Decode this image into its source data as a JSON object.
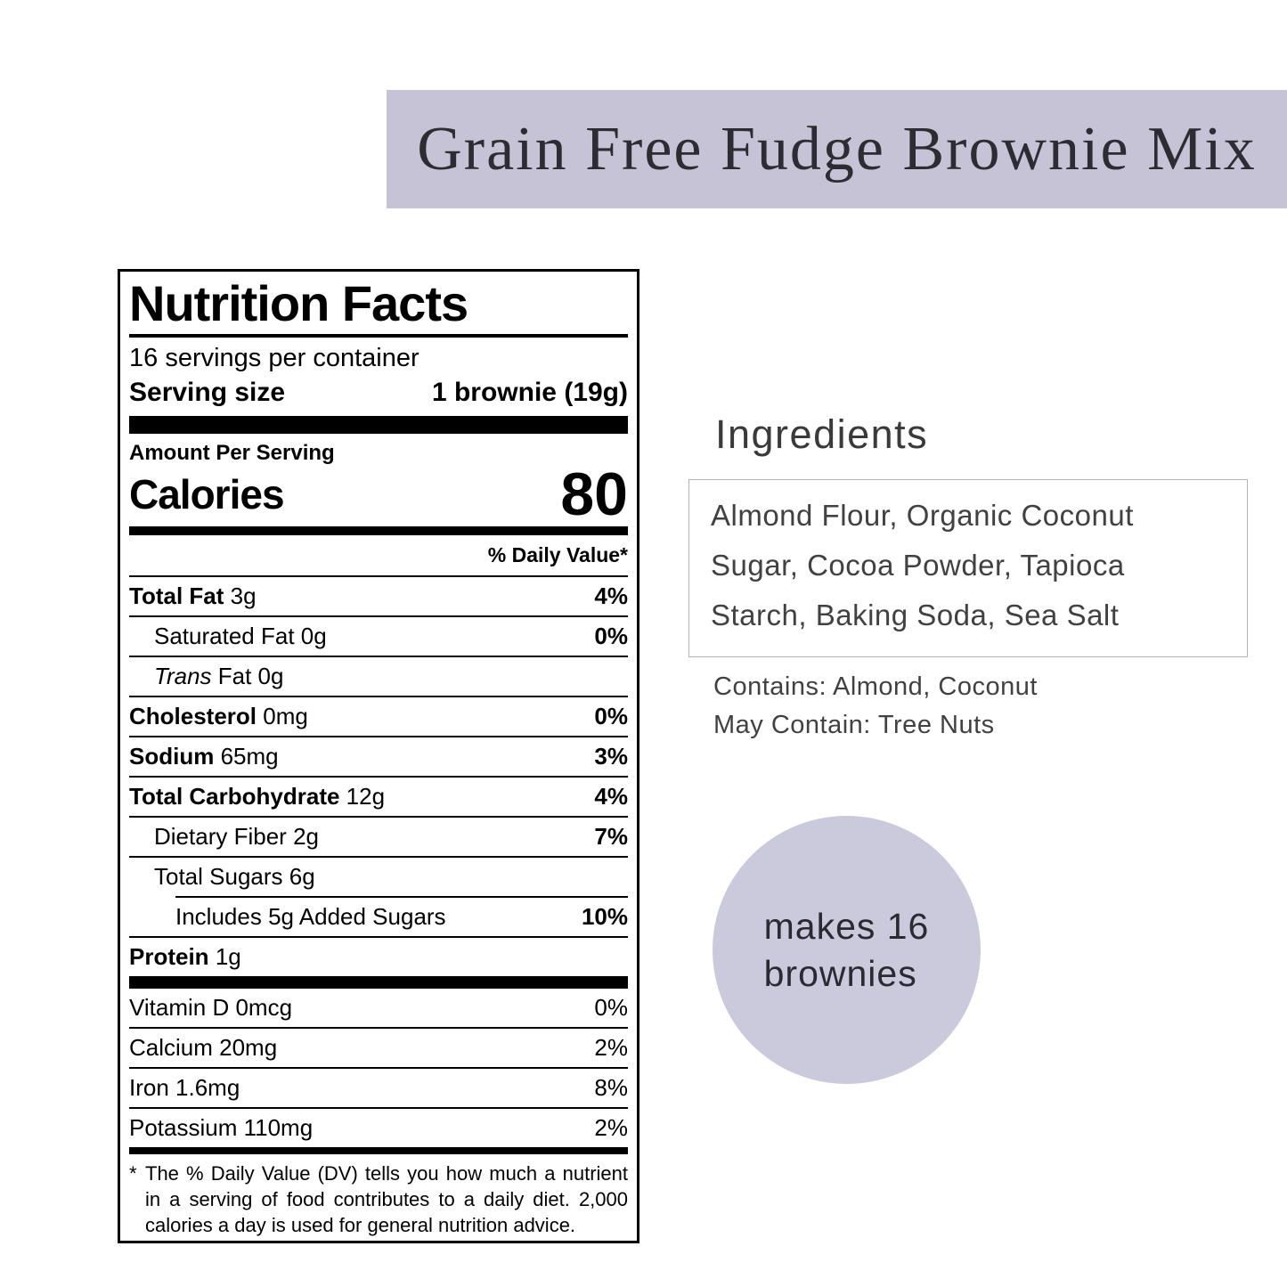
{
  "header": {
    "title": "Grain Free Fudge Brownie Mix"
  },
  "colors": {
    "banner_bg": "#c6c3d6",
    "badge_bg": "#cbc9dc",
    "title_text": "#2d2c33",
    "label_border": "#000000",
    "ingredients_box_border": "#b5b5b5"
  },
  "nutrition": {
    "title": "Nutrition Facts",
    "servings_per_container": "16 servings per container",
    "serving_size_label": "Serving size",
    "serving_size_value": "1 brownie (19g)",
    "amount_per_serving": "Amount Per Serving",
    "calories_label": "Calories",
    "calories_value": "80",
    "daily_value_header": "% Daily Value*",
    "rows": [
      {
        "name": "Total Fat",
        "amount": "3g",
        "dv": "4%"
      },
      {
        "name": "Saturated Fat",
        "amount": "0g",
        "dv": "0%"
      },
      {
        "name": "Trans",
        "amount": "Fat 0g",
        "dv": ""
      },
      {
        "name": "Cholesterol",
        "amount": "0mg",
        "dv": "0%"
      },
      {
        "name": "Sodium",
        "amount": "65mg",
        "dv": "3%"
      },
      {
        "name": "Total Carbohydrate",
        "amount": "12g",
        "dv": "4%"
      },
      {
        "name": "Dietary Fiber",
        "amount": "2g",
        "dv": "7%"
      },
      {
        "name": "Total Sugars",
        "amount": "6g",
        "dv": ""
      },
      {
        "name": "Includes 5g Added Sugars",
        "amount": "",
        "dv": "10%"
      },
      {
        "name": "Protein",
        "amount": "1g",
        "dv": ""
      }
    ],
    "micronutrients": [
      {
        "name": "Vitamin D 0mcg",
        "dv": "0%"
      },
      {
        "name": "Calcium 20mg",
        "dv": "2%"
      },
      {
        "name": "Iron 1.6mg",
        "dv": "8%"
      },
      {
        "name": "Potassium 110mg",
        "dv": "2%"
      }
    ],
    "footnote_marker": "*",
    "footnote": "The % Daily Value (DV) tells you how much a nutrient in a serving of food contributes to a daily diet. 2,000 calories a day is used for general nutrition advice."
  },
  "ingredients": {
    "heading": "Ingredients",
    "list": "Almond Flour, Organic Coconut Sugar, Cocoa Powder, Tapioca Starch, Baking Soda, Sea Salt",
    "contains": "Contains: Almond, Coconut",
    "may_contain": "May Contain: Tree Nuts"
  },
  "badge": {
    "line1": "makes 16",
    "line2": "brownies"
  }
}
